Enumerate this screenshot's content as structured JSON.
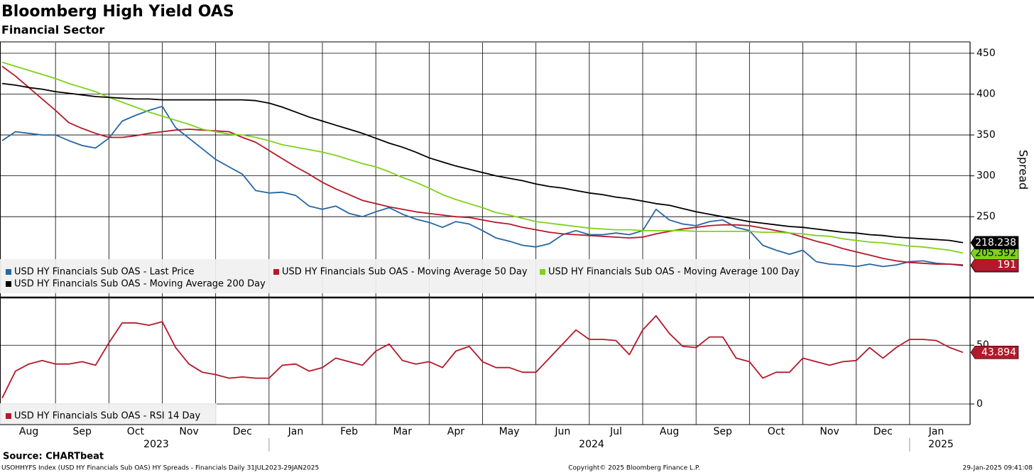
{
  "chart_data": {
    "type": "line",
    "title": "Bloomberg High Yield OAS",
    "subtitle": "Financial Sector",
    "source": "Source: CHARTbeat",
    "footer_left": "USOHHYFS Index (USD HY Financials Sub OAS) HY Spreads - Financials  Daily 31JUL2023-29JAN2025",
    "footer_center": "Copyright© 2025 Bloomberg Finance L.P.",
    "footer_right": "29-Jan-2025 09:41:08",
    "grid": true,
    "categories": [
      null,
      null,
      "Aug",
      null,
      null,
      null,
      "Sep",
      null,
      null,
      null,
      "Oct",
      null,
      null,
      null,
      "Nov",
      null,
      null,
      null,
      "Dec",
      null,
      null,
      null,
      "Jan",
      null,
      null,
      null,
      "Feb",
      null,
      null,
      null,
      "Mar",
      null,
      null,
      null,
      "Apr",
      null,
      null,
      null,
      "May",
      null,
      null,
      null,
      "Jun",
      null,
      null,
      null,
      "Jul",
      null,
      null,
      null,
      "Aug",
      null,
      null,
      null,
      "Sep",
      null,
      null,
      null,
      "Oct",
      null,
      null,
      null,
      "Nov",
      null,
      null,
      null,
      "Dec",
      null,
      null,
      null,
      "Jan",
      null,
      null
    ],
    "years": [
      "2023",
      "2024",
      "2025"
    ],
    "panels": [
      {
        "y_label": "Spread",
        "ylim": [
          152,
          463
        ],
        "yticks": [
          250,
          300,
          350,
          400,
          450
        ],
        "series": [
          {
            "name": "USD HY Financials Sub OAS - Last Price",
            "color": "#2566a3",
            "tag_text_color": "#ffffff",
            "values": [
              343,
              354,
              352,
              350,
              350,
              343,
              337,
              334,
              346,
              367,
              374,
              380,
              385,
              359,
              346,
              333,
              320,
              311,
              302,
              282,
              279,
              280,
              276,
              263,
              259,
              263,
              254,
              250,
              256,
              261,
              253,
              247,
              243,
              237,
              244,
              241,
              233,
              224,
              220,
              215,
              213,
              217,
              228,
              233,
              228,
              228,
              230,
              228,
              233,
              259,
              246,
              241,
              239,
              244,
              246,
              237,
              233,
              215,
              209,
              204,
              209,
              195,
              192,
              191,
              189,
              192,
              189,
              191,
              195,
              196,
              193,
              192,
              190.031
            ]
          },
          {
            "name": "USD HY Financials Sub OAS - Moving Average 50 Day",
            "color": "#b5182a",
            "tag_text_color": "#ffffff",
            "values": [
              434,
              422,
              408,
              394,
              380,
              365,
              358,
              352,
              347,
              347,
              349,
              352,
              354,
              356,
              357,
              356,
              355,
              354,
              347,
              341,
              331,
              321,
              311,
              302,
              292,
              284,
              277,
              270,
              266,
              262,
              259,
              256,
              254,
              252,
              250,
              249,
              246,
              243,
              241,
              237,
              234,
              231,
              229,
              228,
              227,
              226,
              225,
              224,
              225,
              229,
              232,
              235,
              237,
              239,
              240,
              240,
              239,
              236,
              233,
              230,
              225,
              220,
              216,
              211,
              207,
              203,
              199,
              196,
              194,
              193,
              192,
              192,
              191
            ]
          },
          {
            "name": "USD HY Financials Sub OAS - Moving Average 100 Day",
            "color": "#7fd11b",
            "tag_text_color": "#000000",
            "values": [
              439,
              434,
              429,
              424,
              419,
              413,
              408,
              403,
              396,
              390,
              384,
              378,
              373,
              368,
              363,
              357,
              354,
              351,
              350,
              347,
              343,
              338,
              335,
              332,
              329,
              325,
              320,
              315,
              311,
              305,
              298,
              292,
              285,
              277,
              271,
              266,
              261,
              255,
              252,
              248,
              244,
              242,
              240,
              238,
              236,
              235,
              234,
              234,
              233,
              233,
              233,
              233,
              232,
              232,
              232,
              232,
              232,
              231,
              231,
              230,
              229,
              227,
              226,
              223,
              221,
              219,
              218,
              216,
              214,
              213,
              211,
              209,
              205.392
            ]
          },
          {
            "name": "USD HY Financials Sub OAS - Moving Average 200 Day",
            "color": "#000000",
            "tag_text_color": "#ffffff",
            "values": [
              413,
              411,
              408,
              406,
              403,
              401,
              399,
              397,
              396,
              395,
              394,
              394,
              393,
              393,
              393,
              393,
              393,
              393,
              393,
              392,
              389,
              384,
              378,
              372,
              367,
              362,
              357,
              352,
              346,
              340,
              335,
              329,
              322,
              317,
              312,
              308,
              304,
              300,
              297,
              294,
              290,
              287,
              285,
              282,
              279,
              277,
              274,
              272,
              269,
              266,
              264,
              260,
              256,
              253,
              250,
              247,
              244,
              242,
              240,
              238,
              237,
              235,
              233,
              231,
              230,
              228,
              227,
              225,
              224,
              223,
              222,
              221,
              218.238
            ]
          }
        ]
      },
      {
        "ylim": [
          -17.5,
          90
        ],
        "yticks": [
          0,
          50
        ],
        "series": [
          {
            "name": "USD HY Financials Sub OAS - RSI 14 Day",
            "color": "#b5182a",
            "tag_text_color": "#ffffff",
            "values": [
              5,
              28,
              34,
              37,
              34,
              34,
              36,
              33,
              52,
              69,
              69,
              67,
              70,
              48,
              34,
              27,
              25,
              22,
              23,
              22,
              22,
              33,
              34,
              28,
              31,
              39,
              36,
              33,
              45,
              51,
              37,
              34,
              36,
              31,
              45,
              49,
              36,
              31,
              31,
              27,
              27,
              39,
              51,
              63,
              55,
              55,
              54,
              42,
              63,
              75,
              60,
              49,
              48,
              57,
              57,
              39,
              36,
              22,
              27,
              27,
              39,
              36,
              33,
              36,
              37,
              48,
              39,
              48,
              55,
              55,
              54,
              48,
              43.894
            ]
          }
        ]
      }
    ]
  }
}
